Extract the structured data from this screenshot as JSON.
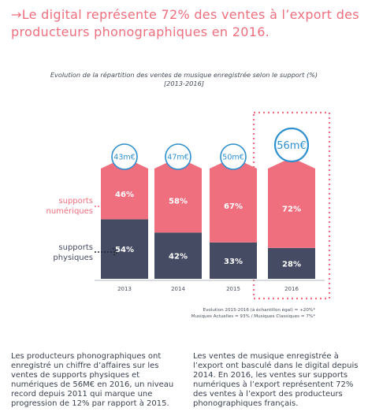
{
  "headline": "→Le digital représente 72% des ventes à l’export des producteurs phonographiques en 2016.",
  "chart_data": {
    "type": "bar",
    "title": "Evolution de la répartition des ventes de musique enregistrée selon le support (%) [2013-2016]",
    "title_line1": "Evolution de la répartition des ventes de musique enregistrée selon le support (%)",
    "title_line2": "[2013-2016]",
    "categories": [
      "2013",
      "2014",
      "2015",
      "2016"
    ],
    "totals": [
      "43m€",
      "47m€",
      "50m€",
      "56m€"
    ],
    "series": [
      {
        "name": "supports numériques",
        "values": [
          46,
          58,
          67,
          72
        ],
        "labels": [
          "46%",
          "58%",
          "67%",
          "72%"
        ],
        "color": "#ef6f7e"
      },
      {
        "name": "supports physiques",
        "values": [
          54,
          42,
          33,
          28
        ],
        "labels": [
          "54%",
          "42%",
          "33%",
          "28%"
        ],
        "color": "#454b63"
      }
    ],
    "legend_numeriques": "supports numériques",
    "legend_physiques": "supports physiques",
    "highlight_category": "2016",
    "accent_color": "#ef6f7e",
    "dark_color": "#454b63",
    "circle_color": "#2e8fcf",
    "notes": [
      "Evolution 2015-2016 (à échantillon égal) = +20%*",
      "Musiques Actuelles = 93% / Musiques Classiques = 7%*"
    ]
  },
  "paragraphs": {
    "left": "Les producteurs phonographiques ont enregistré un chiffre d’affaires sur les ventes de supports physiques et numériques de 56M€ en 2016, un niveau record depuis 2011 qui marque une progression de 12% par rapport à 2015.",
    "right": "Les ventes de musique enregistrée à l’export ont basculé dans le digital depuis 2014. En 2016, les ventes sur supports numériques à l’export représentent 72% des ventes à l’export des producteurs phonographiques français."
  }
}
